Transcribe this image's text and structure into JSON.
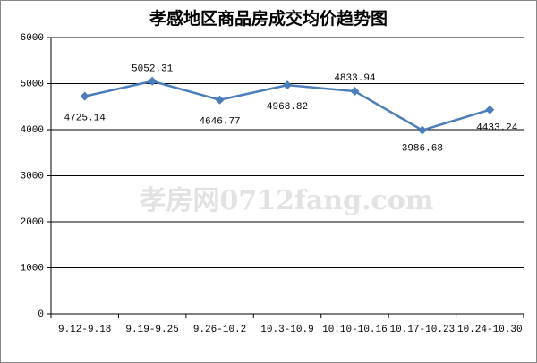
{
  "chart_data": {
    "type": "line",
    "title": "孝感地区商品房成交均价趋势图",
    "watermark": "孝房网0712fang.com",
    "categories": [
      "9.12-9.18",
      "9.19-9.25",
      "9.26-10.2",
      "10.3-10.9",
      "10.10-10.16",
      "10.17-10.23",
      "10.24-10.30"
    ],
    "series": [
      {
        "color": "#4a7ebb",
        "values": [
          4725.14,
          5052.31,
          4646.77,
          4968.82,
          4833.94,
          3986.68,
          4433.24
        ]
      }
    ],
    "ylim": [
      0,
      6000
    ],
    "yticks": [
      0,
      1000,
      2000,
      3000,
      4000,
      5000,
      6000
    ],
    "grid": true
  }
}
